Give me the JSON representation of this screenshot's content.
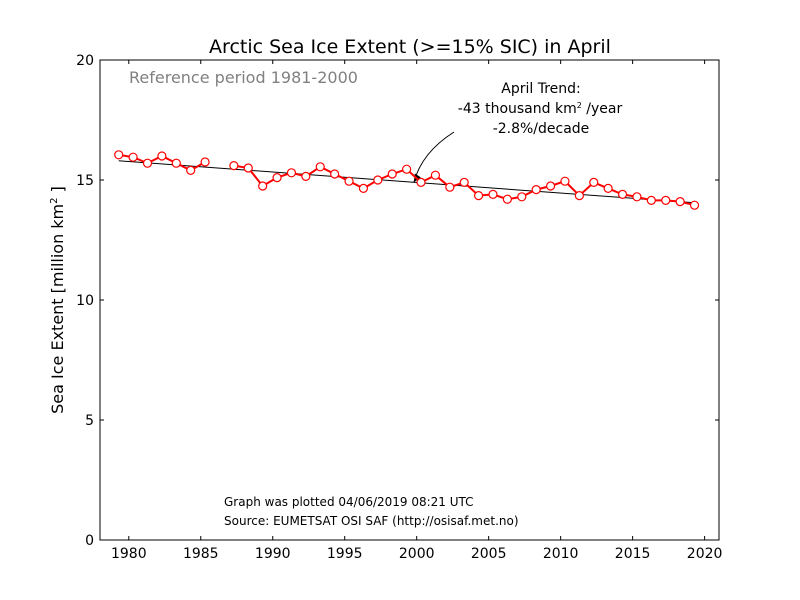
{
  "chart_data": {
    "type": "line",
    "title": "Arctic Sea Ice Extent (>=15% SIC) in April",
    "ylabel_prefix": "Sea Ice Extent [million km",
    "ylabel_sup": "2",
    "ylabel_suffix": " ]",
    "xlabel": "",
    "xlim": [
      1978,
      2021
    ],
    "ylim": [
      0,
      20
    ],
    "xticks": [
      1980,
      1985,
      1990,
      1995,
      2000,
      2005,
      2010,
      2015,
      2020
    ],
    "yticks": [
      0,
      5,
      10,
      15,
      20
    ],
    "grid": false,
    "reference_text": "Reference period 1981-2000",
    "trend_annotation": {
      "line1": "April Trend:",
      "line2_prefix": "-43 thousand km",
      "line2_sup": "2",
      "line2_suffix": " /year",
      "line3": "-2.8%/decade",
      "arrow_target": {
        "x": 1999.8,
        "y": 14.9
      }
    },
    "footer": {
      "line1": "Graph was plotted 04/06/2019 08:21 UTC",
      "line2": "Source: EUMETSAT OSI SAF (http://osisaf.met.no)"
    },
    "series": [
      {
        "color": "#ff0000",
        "x": [
          1979.3,
          1980.3,
          1981.3,
          1982.3,
          1983.3,
          1984.3,
          1985.3,
          1986.3,
          1987.3,
          1988.3,
          1989.3,
          1990.3,
          1991.3,
          1992.3,
          1993.3,
          1994.3,
          1995.3,
          1996.3,
          1997.3,
          1998.3,
          1999.3,
          2000.3,
          2001.3,
          2002.3,
          2003.3,
          2004.3,
          2005.3,
          2006.3,
          2007.3,
          2008.3,
          2009.3,
          2010.3,
          2011.3,
          2012.3,
          2013.3,
          2014.3,
          2015.3,
          2016.3,
          2017.3,
          2018.3,
          2019.3
        ],
        "y": [
          16.05,
          15.95,
          15.7,
          16.0,
          15.7,
          15.4,
          15.75,
          null,
          15.6,
          15.5,
          14.75,
          15.1,
          15.3,
          15.15,
          15.55,
          15.25,
          14.95,
          14.65,
          15.0,
          15.25,
          15.45,
          14.9,
          15.2,
          14.7,
          14.9,
          14.35,
          14.4,
          14.2,
          14.3,
          14.6,
          14.75,
          14.95,
          14.35,
          14.9,
          14.65,
          14.4,
          14.3,
          14.15,
          14.15,
          14.1,
          13.95
        ]
      },
      {
        "name": "trend",
        "color": "#000000",
        "x": [
          1979.3,
          2019.3
        ],
        "y": [
          15.8,
          14.05
        ]
      }
    ]
  }
}
